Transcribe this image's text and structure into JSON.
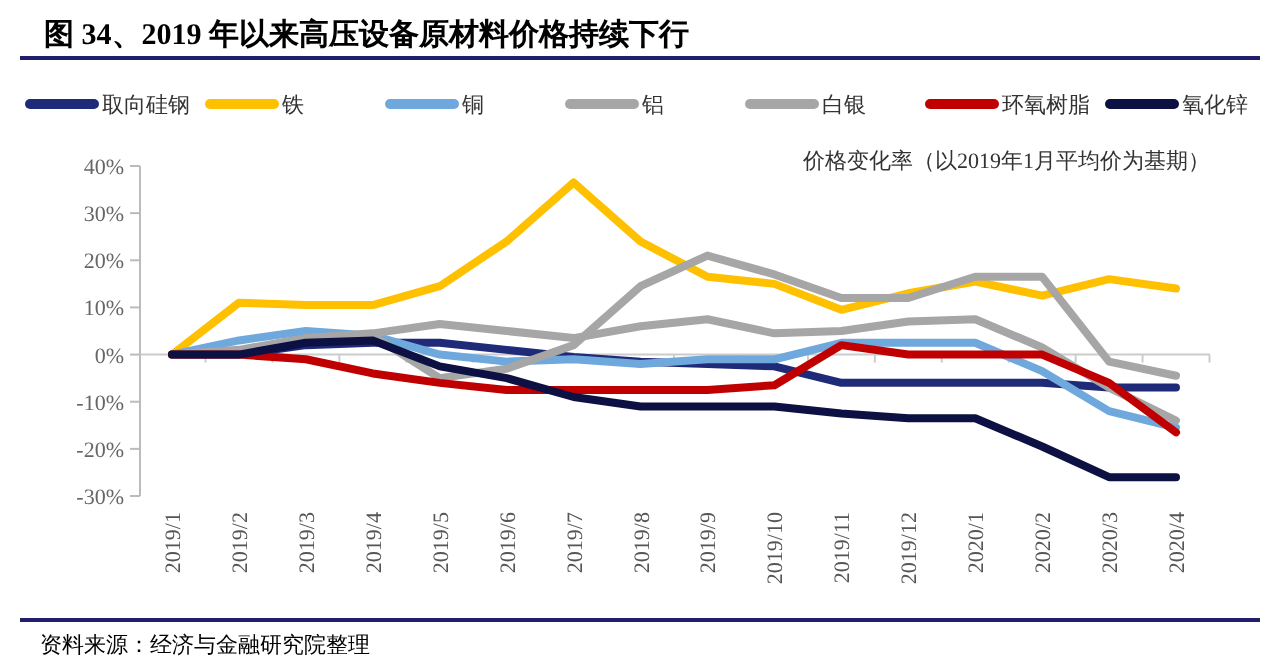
{
  "chart_data": {
    "type": "line",
    "title": "图 34、2019 年以来高压设备原材料价格持续下行",
    "ylabel": "价格变化率（以2019年1月平均价为基期）",
    "annotations": [
      "资料来源：经济与金融研究院整理"
    ],
    "categories": [
      "2019/1",
      "2019/2",
      "2019/3",
      "2019/4",
      "2019/5",
      "2019/6",
      "2019/7",
      "2019/8",
      "2019/9",
      "2019/10",
      "2019/11",
      "2019/12",
      "2020/1",
      "2020/2",
      "2020/3",
      "2020/4"
    ],
    "series": [
      {
        "name": "取向硅钢",
        "color": "#1f2a78",
        "values": [
          0,
          0,
          2,
          2.5,
          2.5,
          1,
          -0.5,
          -1.5,
          -2,
          -2.5,
          -6,
          -6,
          -6,
          -6,
          -7,
          -7
        ]
      },
      {
        "name": "铁",
        "color": "#ffc000",
        "values": [
          0,
          11,
          10.5,
          10.5,
          14.5,
          24,
          36.5,
          24,
          16.5,
          15,
          9.5,
          13,
          15.5,
          12.5,
          16,
          14
        ]
      },
      {
        "name": "铜",
        "color": "#6fa8dc",
        "values": [
          0,
          3,
          5,
          4,
          0,
          -1.5,
          -1,
          -2,
          -1,
          -1,
          2.5,
          2.5,
          2.5,
          -3.5,
          -12,
          -15.5
        ]
      },
      {
        "name": "铝",
        "color": "#a6a6a6",
        "values": [
          0,
          0.5,
          3,
          4,
          -5,
          -3,
          2,
          14.5,
          21,
          17,
          12,
          12,
          16.5,
          16.5,
          -1.5,
          -4.5
        ]
      },
      {
        "name": "白银",
        "color": "#a6a6a6",
        "values": [
          0,
          1,
          3.5,
          4.5,
          6.5,
          5,
          3.5,
          6,
          7.5,
          4.5,
          5,
          7,
          7.5,
          1.5,
          -7,
          -14
        ]
      },
      {
        "name": "环氧树脂",
        "color": "#c00000",
        "values": [
          0,
          0,
          -1,
          -4,
          -6,
          -7.5,
          -7.5,
          -7.5,
          -7.5,
          -6.5,
          2,
          0,
          0,
          0,
          -6,
          -16.5
        ]
      },
      {
        "name": "氧化锌",
        "color": "#0d1042",
        "values": [
          0,
          0,
          2.5,
          3,
          -2.5,
          -5,
          -9,
          -11,
          -11,
          -11,
          -12.5,
          -13.5,
          -13.5,
          -19.5,
          -26,
          -26
        ]
      }
    ],
    "ylim": [
      -30,
      40
    ],
    "yticks": [
      {
        "value": -30,
        "label": "-30%"
      },
      {
        "value": -20,
        "label": "-20%"
      },
      {
        "value": -10,
        "label": "-10%"
      },
      {
        "value": 0,
        "label": "0%"
      },
      {
        "value": 10,
        "label": "10%"
      },
      {
        "value": 20,
        "label": "20%"
      },
      {
        "value": 30,
        "label": "30%"
      },
      {
        "value": 40,
        "label": "40%"
      }
    ],
    "legend": "top",
    "marker": "none",
    "line_style": "solid"
  }
}
